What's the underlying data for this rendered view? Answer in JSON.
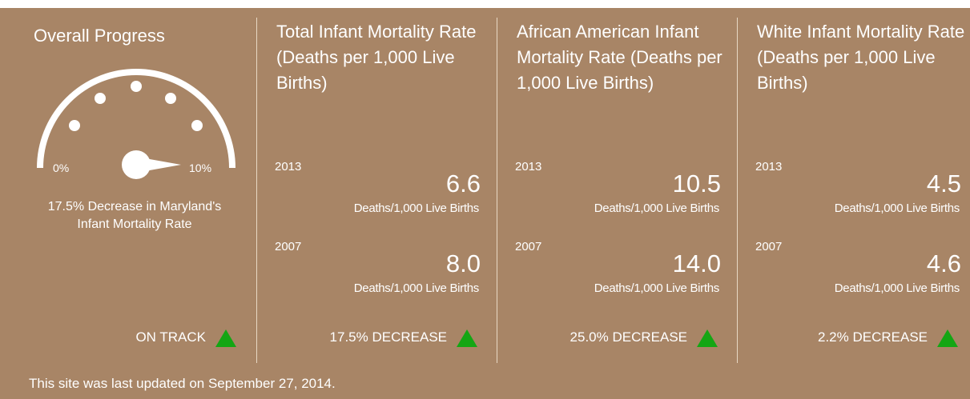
{
  "gauge": {
    "title": "Overall Progress",
    "min_label": "0%",
    "max_label": "10%",
    "description": "17.5% Decrease in Maryland's Infant Mortality Rate",
    "status": "ON TRACK"
  },
  "panels": [
    {
      "title": "Total Infant Mortality Rate (Deaths per 1,000 Live Births)",
      "entries": [
        {
          "year": "2013",
          "value": "6.6",
          "unit": "Deaths/1,000 Live Births"
        },
        {
          "year": "2007",
          "value": "8.0",
          "unit": "Deaths/1,000 Live Births"
        }
      ],
      "change": "17.5% DECREASE"
    },
    {
      "title": "African American Infant Mortality Rate (Deaths per 1,000 Live Births)",
      "entries": [
        {
          "year": "2013",
          "value": "10.5",
          "unit": "Deaths/1,000 Live Births"
        },
        {
          "year": "2007",
          "value": "14.0",
          "unit": "Deaths/1,000 Live Births"
        }
      ],
      "change": "25.0% DECREASE"
    },
    {
      "title": "White Infant Mortality Rate (Deaths per 1,000 Live Births)",
      "entries": [
        {
          "year": "2013",
          "value": "4.5",
          "unit": "Deaths/1,000 Live Births"
        },
        {
          "year": "2007",
          "value": "4.6",
          "unit": "Deaths/1,000 Live Births"
        }
      ],
      "change": "2.2% DECREASE"
    }
  ],
  "footer": "This site was last updated on September 27, 2014."
}
